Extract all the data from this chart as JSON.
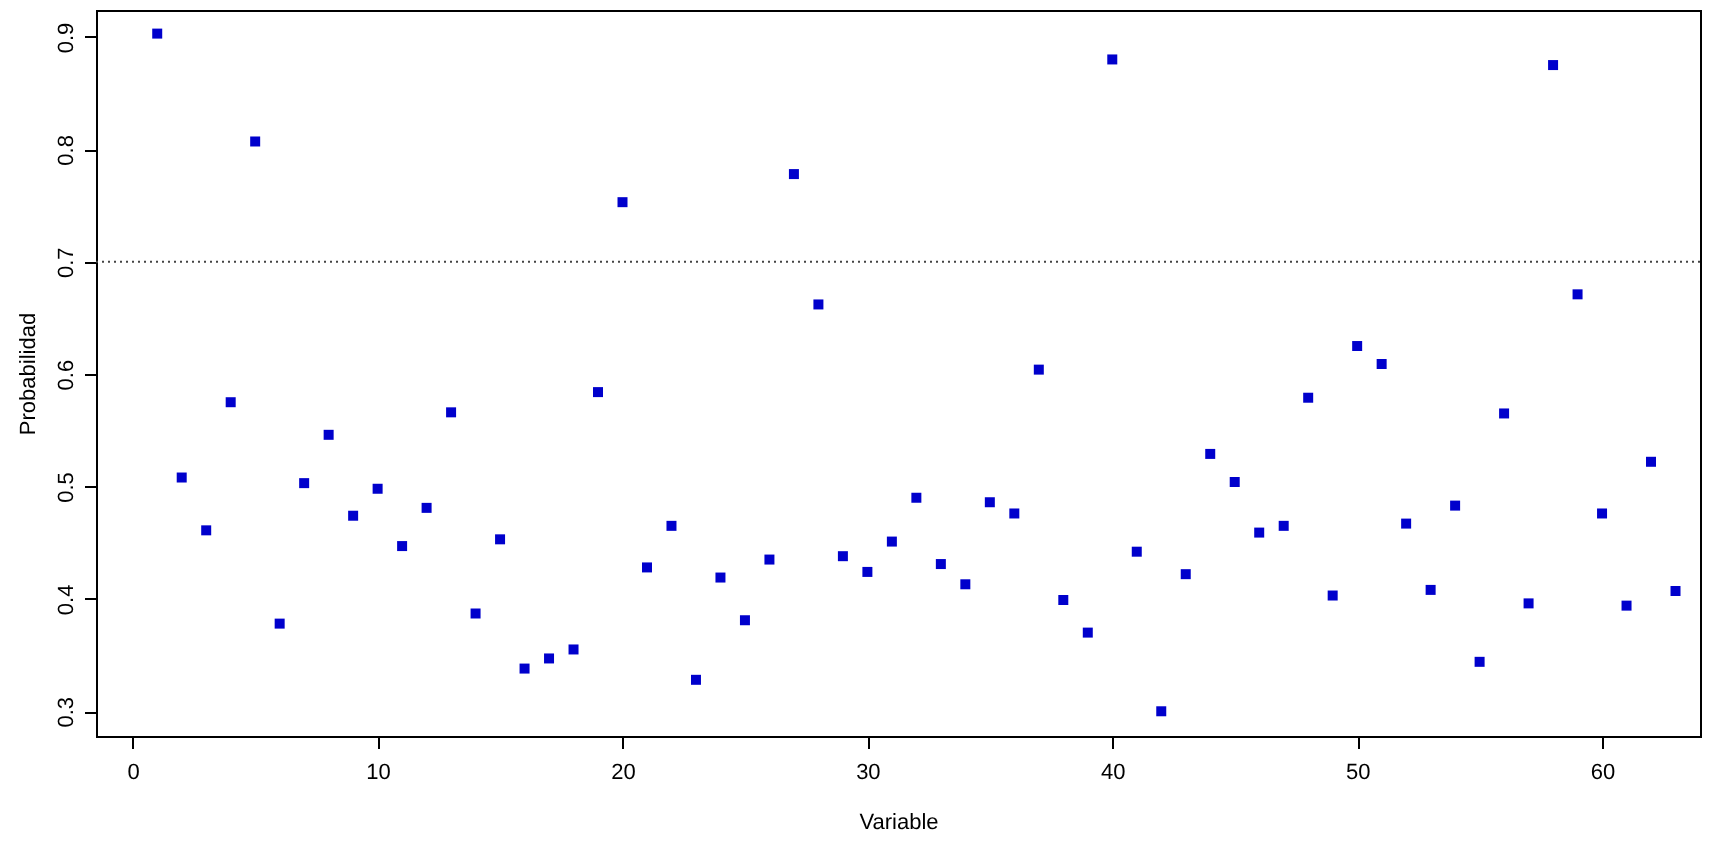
{
  "chart_data": {
    "type": "scatter",
    "xlabel": "Variable",
    "ylabel": "Probabilidad",
    "x": [
      1,
      2,
      3,
      4,
      5,
      6,
      7,
      8,
      9,
      10,
      11,
      12,
      13,
      14,
      15,
      16,
      17,
      18,
      19,
      20,
      21,
      22,
      23,
      24,
      25,
      26,
      27,
      28,
      29,
      30,
      31,
      32,
      33,
      34,
      35,
      36,
      37,
      38,
      39,
      40,
      41,
      42,
      43,
      44,
      45,
      46,
      47,
      48,
      49,
      50,
      51,
      52,
      53,
      54,
      55,
      56,
      57,
      58,
      59,
      60,
      61,
      62,
      63
    ],
    "series": [
      {
        "color": "#0000cc",
        "values": [
          0.903,
          0.508,
          0.461,
          0.575,
          0.807,
          0.378,
          0.503,
          0.546,
          0.474,
          0.498,
          0.447,
          0.481,
          0.566,
          0.387,
          0.453,
          0.338,
          0.347,
          0.355,
          0.584,
          0.753,
          0.428,
          0.465,
          0.328,
          0.419,
          0.381,
          0.435,
          0.778,
          0.662,
          0.438,
          0.424,
          0.451,
          0.49,
          0.431,
          0.413,
          0.486,
          0.476,
          0.604,
          0.399,
          0.37,
          0.88,
          0.442,
          0.3,
          0.422,
          0.529,
          0.504,
          0.459,
          0.465,
          0.579,
          0.403,
          0.625,
          0.609,
          0.467,
          0.408,
          0.483,
          0.344,
          0.565,
          0.396,
          0.875,
          0.671,
          0.476,
          0.394,
          0.522,
          0.407
        ]
      }
    ],
    "xlim": [
      -1.5,
      64
    ],
    "ylim": [
      0.278,
      0.924
    ],
    "xticks": [
      0,
      10,
      20,
      30,
      40,
      50,
      60
    ],
    "yticks": [
      0.3,
      0.4,
      0.5,
      0.6,
      0.7,
      0.8,
      0.9
    ],
    "ref_lines": [
      {
        "axis": "y",
        "value": 0.7,
        "color": "#444444",
        "line_style": "dotted"
      }
    ],
    "grid": false,
    "marker": "square"
  }
}
